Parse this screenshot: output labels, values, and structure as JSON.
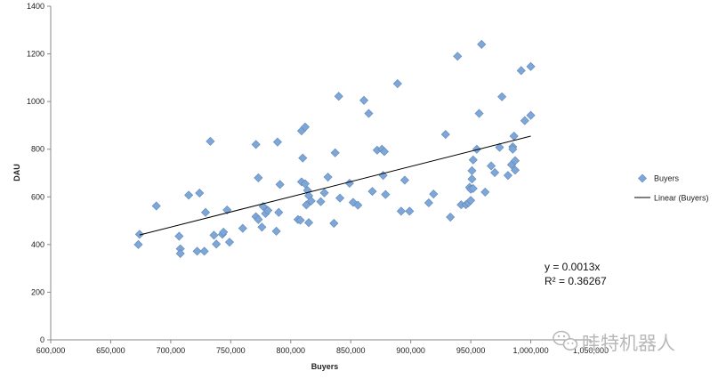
{
  "chart_data": {
    "type": "scatter",
    "title": "",
    "xlabel": "Buyers",
    "ylabel": "DAU",
    "xlim": [
      600000,
      1050000
    ],
    "ylim": [
      0,
      1400
    ],
    "x_ticks": [
      600000,
      650000,
      700000,
      750000,
      800000,
      850000,
      900000,
      950000,
      1000000,
      1050000
    ],
    "x_tick_labels": [
      "600,000",
      "650,000",
      "700,000",
      "750,000",
      "800,000",
      "850,000",
      "900,000",
      "950,000",
      "1,000,000",
      "1,050,000"
    ],
    "y_ticks": [
      0,
      200,
      400,
      600,
      800,
      1000,
      1200,
      1400
    ],
    "y_tick_labels": [
      "0",
      "200",
      "400",
      "600",
      "800",
      "1000",
      "1200",
      "1400"
    ],
    "grid": false,
    "legend_position": "right",
    "series": [
      {
        "name": "Buyers",
        "marker": "diamond",
        "color": "#7ea6d6",
        "points": [
          [
            673000,
            400
          ],
          [
            674000,
            443
          ],
          [
            688000,
            562
          ],
          [
            707000,
            435
          ],
          [
            708000,
            382
          ],
          [
            708000,
            362
          ],
          [
            715000,
            607
          ],
          [
            722000,
            372
          ],
          [
            724000,
            616
          ],
          [
            728000,
            372
          ],
          [
            729000,
            535
          ],
          [
            733000,
            833
          ],
          [
            736000,
            439
          ],
          [
            738000,
            402
          ],
          [
            743000,
            443
          ],
          [
            744000,
            452
          ],
          [
            747000,
            545
          ],
          [
            749000,
            410
          ],
          [
            760000,
            468
          ],
          [
            771000,
            820
          ],
          [
            771000,
            517
          ],
          [
            773000,
            505
          ],
          [
            773000,
            680
          ],
          [
            776000,
            473
          ],
          [
            777000,
            560
          ],
          [
            779000,
            530
          ],
          [
            781000,
            543
          ],
          [
            788000,
            456
          ],
          [
            789000,
            830
          ],
          [
            790000,
            535
          ],
          [
            791000,
            652
          ],
          [
            806000,
            505
          ],
          [
            808000,
            502
          ],
          [
            809000,
            663
          ],
          [
            809000,
            877
          ],
          [
            810000,
            763
          ],
          [
            812000,
            893
          ],
          [
            812000,
            655
          ],
          [
            813000,
            566
          ],
          [
            814000,
            627
          ],
          [
            815000,
            492
          ],
          [
            815000,
            605
          ],
          [
            817000,
            583
          ],
          [
            825000,
            580
          ],
          [
            828000,
            617
          ],
          [
            831000,
            683
          ],
          [
            836000,
            489
          ],
          [
            837000,
            785
          ],
          [
            840000,
            1022
          ],
          [
            841000,
            595
          ],
          [
            849000,
            657
          ],
          [
            852000,
            577
          ],
          [
            856000,
            565
          ],
          [
            861000,
            1005
          ],
          [
            865000,
            950
          ],
          [
            868000,
            623
          ],
          [
            872000,
            796
          ],
          [
            876000,
            800
          ],
          [
            877000,
            690
          ],
          [
            878000,
            790
          ],
          [
            879000,
            610
          ],
          [
            889000,
            1075
          ],
          [
            892000,
            540
          ],
          [
            895000,
            670
          ],
          [
            899000,
            540
          ],
          [
            915000,
            575
          ],
          [
            919000,
            612
          ],
          [
            929000,
            862
          ],
          [
            933000,
            515
          ],
          [
            939000,
            1190
          ],
          [
            942000,
            567
          ],
          [
            946000,
            567
          ],
          [
            948000,
            575
          ],
          [
            949000,
            640
          ],
          [
            950000,
            585
          ],
          [
            950000,
            632
          ],
          [
            951000,
            675
          ],
          [
            951000,
            710
          ],
          [
            952000,
            755
          ],
          [
            952000,
            635
          ],
          [
            955000,
            800
          ],
          [
            957000,
            950
          ],
          [
            959000,
            1240
          ],
          [
            962000,
            620
          ],
          [
            967000,
            730
          ],
          [
            970000,
            702
          ],
          [
            974000,
            808
          ],
          [
            976000,
            1020
          ],
          [
            981000,
            690
          ],
          [
            984000,
            735
          ],
          [
            985000,
            810
          ],
          [
            985000,
            800
          ],
          [
            986000,
            855
          ],
          [
            987000,
            752
          ],
          [
            987000,
            712
          ],
          [
            992000,
            1130
          ],
          [
            995000,
            920
          ],
          [
            1000000,
            1147
          ],
          [
            1000000,
            942
          ]
        ]
      }
    ],
    "trendline": {
      "name": "Linear (Buyers)",
      "type": "linear",
      "x_range": [
        674000,
        1000000
      ],
      "y_range": [
        440,
        855
      ]
    },
    "annotations": [
      "y = 0.0013x",
      "R² = 0.36267"
    ],
    "watermark": "哇特机器人"
  },
  "colors": {
    "marker_fill": "#7ea6d6",
    "marker_stroke": "#5d87bb",
    "trendline": "#000000",
    "axis": "#888888",
    "watermark": "#b9b9b9"
  },
  "icons": {
    "watermark_logo": "wechat-icon"
  }
}
